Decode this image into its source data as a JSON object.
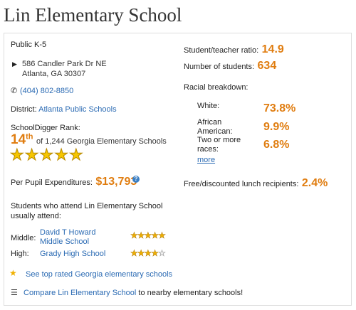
{
  "school_name": "Lin Elementary School",
  "grade_type": "Public K-5",
  "address_line1": "586 Candler Park Dr NE",
  "address_line2": "Atlanta, GA 30307",
  "phone": "(404) 802-8850",
  "district_label": "District:",
  "district_name": "Atlanta Public Schools",
  "rank_label": "SchoolDigger Rank:",
  "rank_number": "14",
  "rank_suffix": "th",
  "rank_of": "of 1,244 Georgia Elementary Schools",
  "rank_stars": 5,
  "expenditures_label": "Per Pupil Expenditures:",
  "expenditures_value": "$13,793",
  "feeder_heading": "Students who attend Lin Elementary School usually attend:",
  "feeder": [
    {
      "level": "Middle:",
      "school": "David T Howard Middle School",
      "stars": 5
    },
    {
      "level": "High:",
      "school": "Grady High School",
      "stars": 4
    }
  ],
  "top_rated_link": "See top rated Georgia elementary schools",
  "compare_link": "Compare Lin Elementary School",
  "compare_suffix": "to nearby elementary schools!",
  "ratio_label": "Student/teacher ratio:",
  "ratio_value": "14.9",
  "students_label": "Number of students:",
  "students_value": "634",
  "racial_label": "Racial breakdown:",
  "racial": [
    {
      "label": "White:",
      "value": "73.8%"
    },
    {
      "label": "African American:",
      "value": "9.9%"
    },
    {
      "label": "Two or more races:",
      "value": "6.8%"
    }
  ],
  "more_link": "more",
  "lunch_label": "Free/discounted lunch recipients:",
  "lunch_value": "2.4%",
  "colors": {
    "accent": "#e07d10",
    "link": "#2a6ab3",
    "star": "#f0b400"
  }
}
